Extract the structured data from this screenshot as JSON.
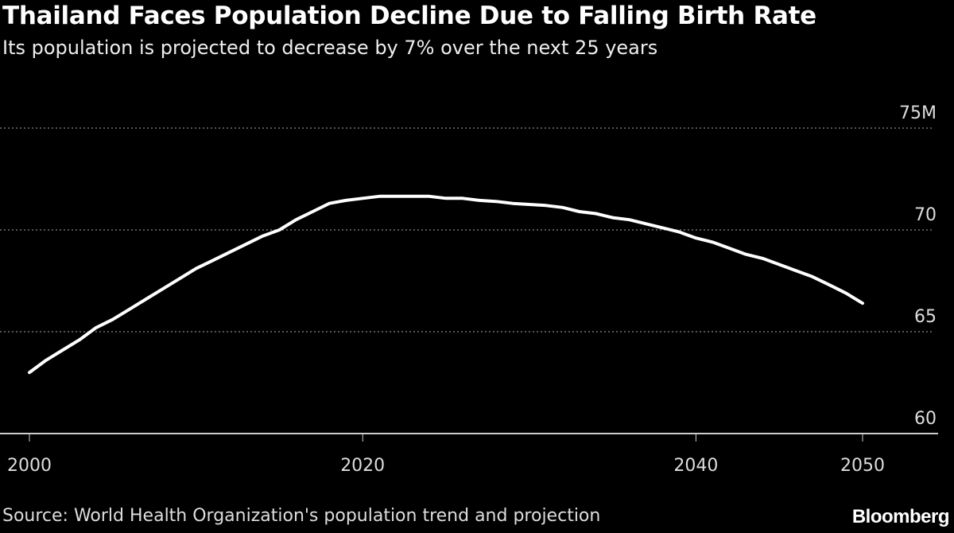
{
  "title": "Thailand Faces Population Decline Due to Falling Birth Rate",
  "subtitle": "Its population is projected to decrease by 7% over the next 25 years",
  "source": "Source: World Health Organization's population trend and projection",
  "logo": "Bloomberg",
  "chart_data": {
    "type": "line",
    "title": "Thailand Faces Population Decline Due to Falling Birth Rate",
    "subtitle": "Its population is projected to decrease by 7% over the next 25 years",
    "xlabel": "",
    "ylabel": "",
    "xlim": [
      2000,
      2050
    ],
    "ylim": [
      60,
      75
    ],
    "x_ticks": [
      2000,
      2020,
      2040,
      2050
    ],
    "x_tick_labels": [
      "2000",
      "2020",
      "2040",
      "2050"
    ],
    "y_ticks": [
      60,
      65,
      70,
      75
    ],
    "y_tick_labels": [
      "60",
      "65",
      "70",
      "75M"
    ],
    "grid": "horizontal dotted",
    "line_color": "#ffffff",
    "background": "#000000",
    "x": [
      2000,
      2001,
      2002,
      2003,
      2004,
      2005,
      2006,
      2007,
      2008,
      2009,
      2010,
      2011,
      2012,
      2013,
      2014,
      2015,
      2016,
      2017,
      2018,
      2019,
      2020,
      2021,
      2022,
      2023,
      2024,
      2025,
      2026,
      2027,
      2028,
      2029,
      2030,
      2031,
      2032,
      2033,
      2034,
      2035,
      2036,
      2037,
      2038,
      2039,
      2040,
      2041,
      2042,
      2043,
      2044,
      2045,
      2046,
      2047,
      2048,
      2049,
      2050
    ],
    "values": [
      63.0,
      63.6,
      64.1,
      64.6,
      65.2,
      65.6,
      66.1,
      66.6,
      67.1,
      67.6,
      68.1,
      68.5,
      68.9,
      69.3,
      69.7,
      70.0,
      70.5,
      70.9,
      71.3,
      71.45,
      71.55,
      71.65,
      71.65,
      71.65,
      71.65,
      71.55,
      71.55,
      71.45,
      71.4,
      71.3,
      71.25,
      71.2,
      71.1,
      70.9,
      70.8,
      70.6,
      70.5,
      70.3,
      70.1,
      69.9,
      69.6,
      69.4,
      69.1,
      68.8,
      68.6,
      68.3,
      68.0,
      67.7,
      67.3,
      66.9,
      66.4
    ]
  }
}
